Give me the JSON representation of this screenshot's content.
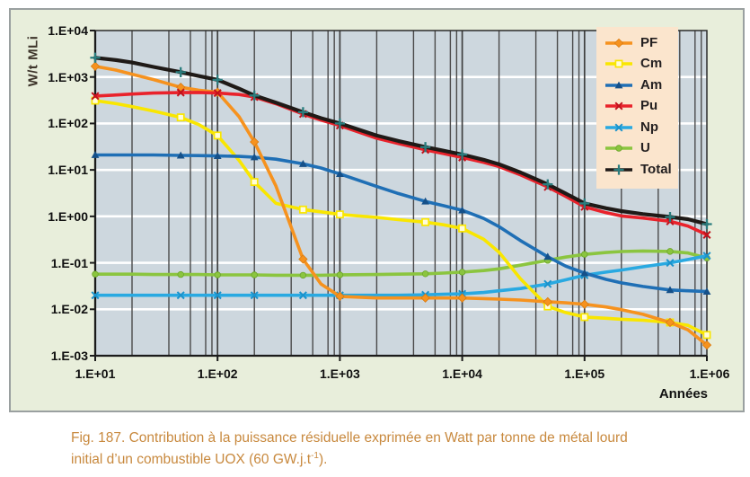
{
  "figure": {
    "background": "#e8eedb",
    "border_color": "#9aa0a0",
    "caption": {
      "line1": "Fig. 187. Contribution à la puissance résiduelle exprimée en Watt par tonne de métal lourd",
      "line2_pre": "initial d’un combustible UOX (60 GW.j.t",
      "line2_sup": "-1",
      "line2_post": ").",
      "color": "#c8893e"
    }
  },
  "chart_data": {
    "type": "line",
    "x_scale": "log",
    "y_scale": "log",
    "title": "",
    "xlabel": "Années",
    "ylabel": "W/t MLi",
    "xlim": [
      10,
      1000000
    ],
    "ylim": [
      0.001,
      10000
    ],
    "x_tick_labels": [
      "1.E+01",
      "1.E+02",
      "1.E+03",
      "1.E+04",
      "1.E+05",
      "1.E+06"
    ],
    "y_tick_labels": [
      "1.E+04",
      "1.E+03",
      "1.E+02",
      "1.E+01",
      "1.E+00",
      "1.E-01",
      "1.E-02",
      "1.E-03"
    ],
    "grid": {
      "horizontal_major_color": "#ffffff",
      "vertical_major_color": "#3f3f3f",
      "vertical_minor_color": "#4a4a4a",
      "vertical_minor_multiples": [
        2,
        4,
        6,
        8,
        9
      ]
    },
    "plot_background": "#cdd7de",
    "axis_color": "#1b1b1b",
    "ylabel_color": "#3e352b",
    "legend": {
      "background": "#fbe5cd",
      "position": "top-right"
    },
    "x": [
      10,
      15,
      20,
      30,
      50,
      70,
      100,
      150,
      200,
      300,
      500,
      700,
      1000,
      2000,
      3000,
      5000,
      7000,
      10000,
      15000,
      20000,
      30000,
      50000,
      70000,
      100000,
      150000,
      200000,
      300000,
      500000,
      700000,
      1000000
    ],
    "marker_x": [
      10,
      50,
      100,
      200,
      500,
      1000,
      5000,
      10000,
      50000,
      100000,
      500000,
      1000000
    ],
    "series": [
      {
        "name": "PF",
        "color": "#f6921e",
        "marker": "diamond",
        "values": [
          1700,
          1400,
          1150,
          880,
          600,
          520,
          470,
          140,
          40,
          4.5,
          0.12,
          0.035,
          0.019,
          0.0175,
          0.0175,
          0.0175,
          0.0175,
          0.0175,
          0.017,
          0.0165,
          0.0158,
          0.0145,
          0.0138,
          0.0128,
          0.0112,
          0.0098,
          0.0078,
          0.0052,
          0.0036,
          0.0017
        ]
      },
      {
        "name": "Cm",
        "color": "#f9e600",
        "marker": "square-open",
        "values": [
          310,
          265,
          230,
          185,
          135,
          95,
          55,
          16,
          5.5,
          1.9,
          1.4,
          1.25,
          1.1,
          0.95,
          0.85,
          0.75,
          0.66,
          0.55,
          0.32,
          0.17,
          0.045,
          0.0115,
          0.0085,
          0.0068,
          0.0064,
          0.0061,
          0.0058,
          0.0052,
          0.0045,
          0.0028
        ]
      },
      {
        "name": "Am",
        "color": "#1f6fb5",
        "marker": "triangle",
        "marker_color": "#155089",
        "values": [
          21,
          21,
          21,
          21,
          20.5,
          20.3,
          20,
          19.5,
          18.8,
          17,
          13.5,
          11,
          8.2,
          4.4,
          3.1,
          2.1,
          1.7,
          1.35,
          0.9,
          0.6,
          0.3,
          0.135,
          0.085,
          0.06,
          0.044,
          0.037,
          0.031,
          0.026,
          0.025,
          0.024
        ]
      },
      {
        "name": "Pu",
        "color": "#e9222b",
        "marker": "x",
        "marker_color": "#c1121c",
        "values": [
          390,
          410,
          430,
          450,
          462,
          465,
          450,
          420,
          370,
          265,
          160,
          118,
          90,
          48,
          37,
          27,
          22.5,
          18.5,
          14.5,
          11.8,
          7.8,
          4.3,
          2.7,
          1.6,
          1.2,
          1.02,
          0.92,
          0.78,
          0.62,
          0.4
        ]
      },
      {
        "name": "Np",
        "color": "#29a9e1",
        "marker": "x",
        "marker_color": "#1b93cc",
        "values": [
          0.02,
          0.02,
          0.02,
          0.02,
          0.02,
          0.02,
          0.02,
          0.02,
          0.02,
          0.02,
          0.02,
          0.02,
          0.02,
          0.02,
          0.02,
          0.0205,
          0.021,
          0.0215,
          0.023,
          0.025,
          0.028,
          0.035,
          0.043,
          0.054,
          0.063,
          0.07,
          0.082,
          0.1,
          0.118,
          0.142
        ]
      },
      {
        "name": "U",
        "color": "#8bc53f",
        "marker": "circle",
        "marker_color": "#6ca52c",
        "values": [
          0.057,
          0.057,
          0.057,
          0.056,
          0.056,
          0.056,
          0.055,
          0.055,
          0.055,
          0.054,
          0.054,
          0.054,
          0.055,
          0.056,
          0.057,
          0.058,
          0.06,
          0.063,
          0.068,
          0.074,
          0.089,
          0.113,
          0.133,
          0.152,
          0.167,
          0.175,
          0.18,
          0.176,
          0.163,
          0.127
        ]
      },
      {
        "name": "Total",
        "color": "#1f1a17",
        "marker": "plus",
        "marker_color": "#2a7d7e",
        "values": [
          2600,
          2300,
          2050,
          1650,
          1270,
          1050,
          870,
          560,
          400,
          280,
          175,
          130,
          100,
          55,
          42,
          31,
          26,
          21.5,
          16.5,
          13.2,
          8.8,
          4.9,
          3.1,
          1.9,
          1.5,
          1.3,
          1.12,
          0.97,
          0.87,
          0.68
        ]
      }
    ]
  }
}
